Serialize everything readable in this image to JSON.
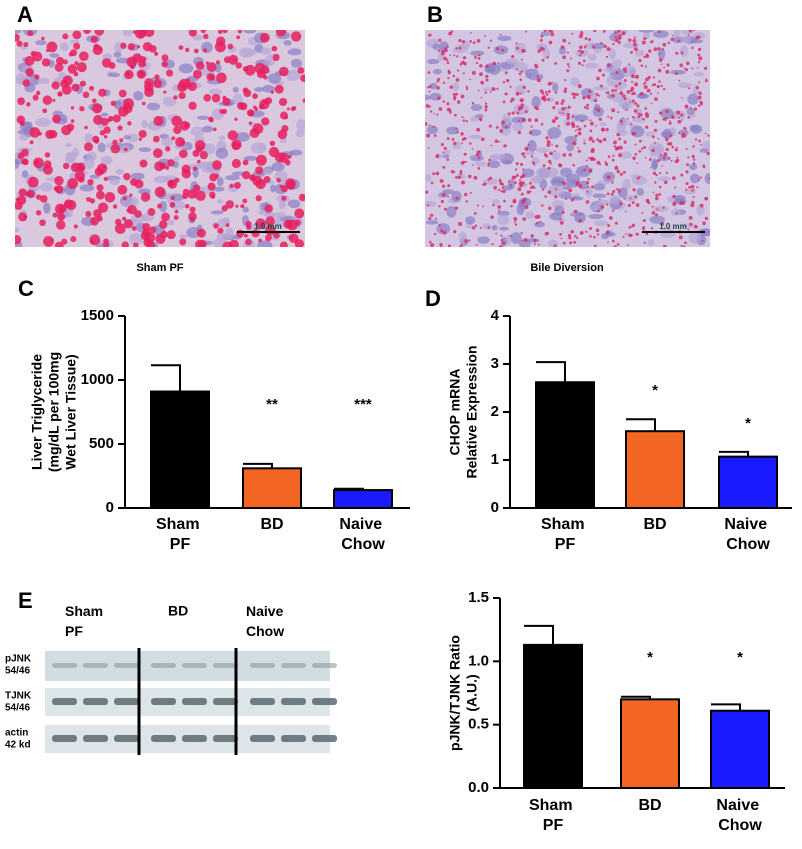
{
  "panels": [
    {
      "letter": "A",
      "caption": "Sham PF",
      "scale_bar": "1.0 mm"
    },
    {
      "letter": "B",
      "caption": "Bile Diversion",
      "scale_bar": "1.0 mm"
    }
  ],
  "blot": {
    "letter": "E",
    "groups": [
      "Sham PF",
      "BD",
      "Naive Chow"
    ],
    "rows": [
      [
        "pJNK",
        "54/46"
      ],
      [
        "TJNK",
        "54/46"
      ],
      [
        "actin",
        "42 kd"
      ]
    ]
  },
  "chart_data": [
    {
      "type": "bar",
      "letter": "C",
      "ylabel": [
        "Liver Triglyceride",
        "(mg/dL per 100mg",
        "Wet Liver Tissue)"
      ],
      "categories": [
        "Sham PF",
        "BD",
        "Naive Chow"
      ],
      "colors": [
        "#000000",
        "#f26522",
        "#1a1aff"
      ],
      "values": [
        910,
        310,
        140
      ],
      "errors": [
        205,
        35,
        10
      ],
      "significance": [
        null,
        "**",
        "***"
      ],
      "ylim": [
        0,
        1500
      ],
      "yticks": [
        0,
        500,
        1000,
        1500
      ]
    },
    {
      "type": "bar",
      "letter": "D",
      "ylabel": [
        "CHOP mRNA",
        "Relative  Expression"
      ],
      "categories": [
        "Sham PF",
        "BD",
        "Naive Chow"
      ],
      "colors": [
        "#000000",
        "#f26522",
        "#1a1aff"
      ],
      "values": [
        2.62,
        1.6,
        1.07
      ],
      "errors": [
        0.42,
        0.25,
        0.1
      ],
      "significance": [
        null,
        "*",
        "*"
      ],
      "ylim": [
        0,
        4
      ],
      "yticks": [
        0,
        1,
        2,
        3,
        4
      ]
    },
    {
      "type": "bar",
      "ylabel": [
        "pJNK/TJNK Ratio",
        "(A.U.)"
      ],
      "categories": [
        "Sham PF",
        "BD",
        "Naive Chow"
      ],
      "colors": [
        "#000000",
        "#f26522",
        "#1a1aff"
      ],
      "values": [
        1.13,
        0.7,
        0.61
      ],
      "errors": [
        0.15,
        0.02,
        0.05
      ],
      "significance": [
        null,
        "*",
        "*"
      ],
      "ylim": [
        0,
        1.5
      ],
      "yticks": [
        {
          "value": 0,
          "label": "0.0"
        },
        {
          "value": 0.5,
          "label": "0.5"
        },
        {
          "value": 1,
          "label": "1.0"
        },
        {
          "value": 1.5,
          "label": "1.5"
        }
      ]
    }
  ]
}
